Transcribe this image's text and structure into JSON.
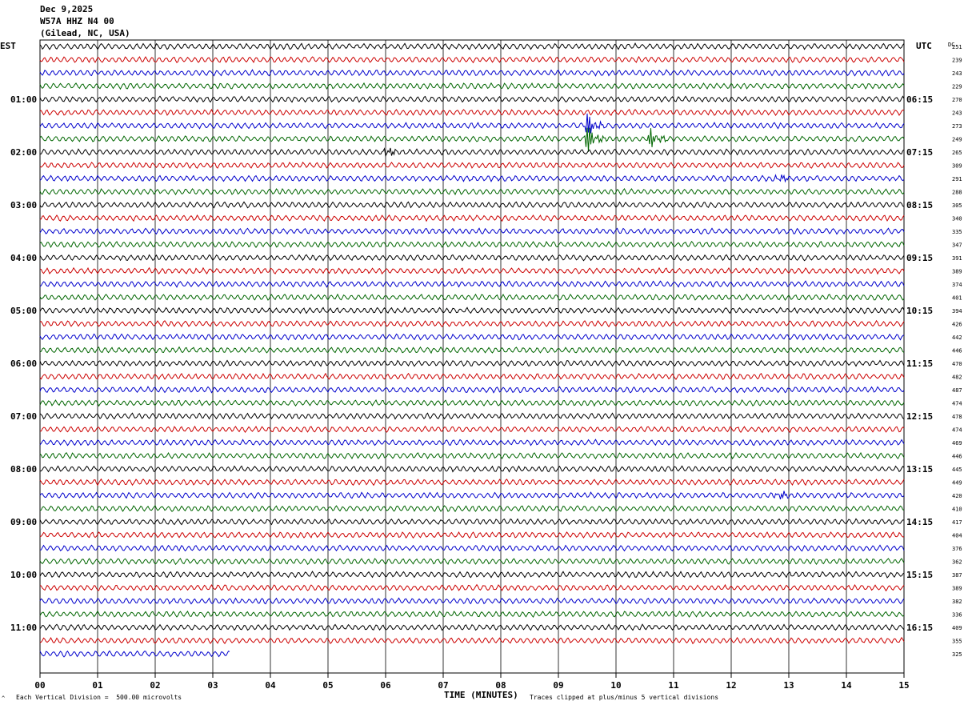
{
  "header": {
    "date": "Dec 9,2025",
    "station": "W57A HHZ N4 00",
    "location": "(Gilead, NC, USA)"
  },
  "footer": {
    "mark": "^",
    "vertical_division": "Each Vertical Division =  500.00 microvolts",
    "clip_note": "Traces clipped at plus/minus 5 vertical divisions"
  },
  "chart_data": {
    "type": "line",
    "title": "W57A HHZ N4 00",
    "xlabel": "TIME (MINUTES)",
    "left_axis_label": "EST",
    "right_axis_label": "UTC",
    "dc_label": "DC",
    "x_range": [
      0,
      15
    ],
    "x_ticks": [
      "00",
      "01",
      "02",
      "03",
      "04",
      "05",
      "06",
      "07",
      "08",
      "09",
      "10",
      "11",
      "12",
      "13",
      "14",
      "15"
    ],
    "est_labels": [
      "01:00",
      "02:00",
      "03:00",
      "04:00",
      "05:00",
      "06:00",
      "07:00",
      "08:00",
      "09:00",
      "10:00",
      "11:00"
    ],
    "utc_labels": [
      "06:15",
      "07:15",
      "08:15",
      "09:15",
      "10:15",
      "11:15",
      "12:15",
      "13:15",
      "14:15",
      "15:15",
      "16:15"
    ],
    "dc_values": [
      "251",
      "239",
      "243",
      "229",
      "270",
      "243",
      "273",
      "249",
      "265",
      "309",
      "291",
      "288",
      "305",
      "340",
      "335",
      "347",
      "391",
      "389",
      "374",
      "401",
      "394",
      "426",
      "442",
      "446",
      "470",
      "482",
      "487",
      "474",
      "478",
      "474",
      "469",
      "446",
      "445",
      "449",
      "420",
      "410",
      "417",
      "404",
      "376",
      "362",
      "387",
      "389",
      "382",
      "336",
      "409",
      "355",
      "325"
    ],
    "trace_colors": [
      "#000000",
      "#cc0000",
      "#0000cc",
      "#006600"
    ],
    "traces_per_hour": 4,
    "minutes_per_trace": 15,
    "last_trace_length_minutes": 3.3,
    "events": [
      {
        "trace": 6,
        "minute": 9.5,
        "amplitude": 14
      },
      {
        "trace": 7,
        "minute": 9.5,
        "amplitude": 18
      },
      {
        "trace": 7,
        "minute": 10.6,
        "amplitude": 12
      },
      {
        "trace": 8,
        "minute": 6.0,
        "amplitude": 7
      },
      {
        "trace": 10,
        "minute": 12.8,
        "amplitude": 7
      },
      {
        "trace": 34,
        "minute": 12.8,
        "amplitude": 7
      }
    ]
  }
}
